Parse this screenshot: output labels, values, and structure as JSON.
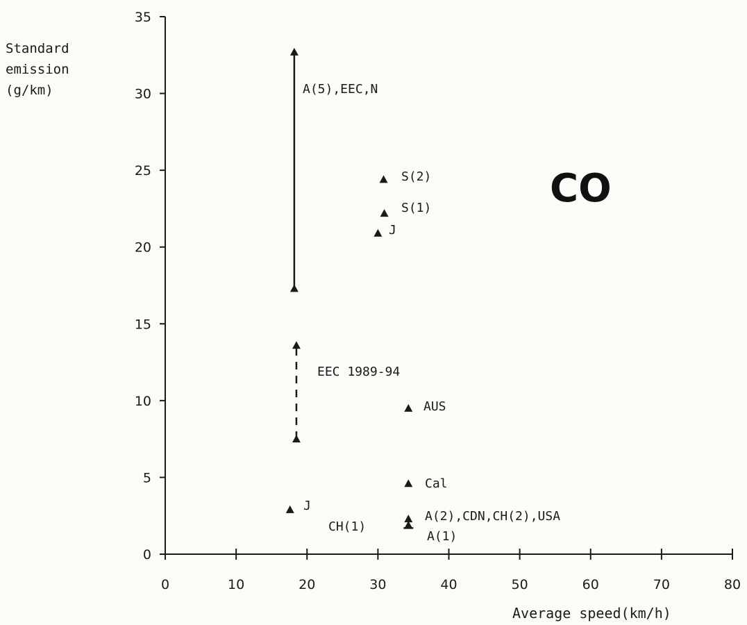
{
  "chart_data": {
    "type": "scatter",
    "title": "CO",
    "ylabel_lines": [
      "Standard",
      "emission",
      "(g/km)"
    ],
    "xlabel": "Average speed(km/h)",
    "xlim": [
      0,
      80
    ],
    "ylim": [
      0,
      35
    ],
    "xticks": [
      0,
      10,
      20,
      30,
      40,
      50,
      60,
      70,
      80
    ],
    "yticks": [
      0,
      5,
      10,
      15,
      20,
      25,
      30,
      35
    ],
    "points": [
      {
        "label": "S(2)",
        "x": 30.8,
        "y": 24.4
      },
      {
        "label": "S(1)",
        "x": 30.9,
        "y": 22.2
      },
      {
        "label": "J",
        "x": 30.0,
        "y": 20.9
      },
      {
        "label": "AUS",
        "x": 34.3,
        "y": 9.5
      },
      {
        "label": "Cal",
        "x": 34.3,
        "y": 4.6
      },
      {
        "label": "J",
        "x": 17.6,
        "y": 2.9
      },
      {
        "label": "A(2),CDN,CH(2),USA",
        "x": 34.3,
        "y": 2.3
      },
      {
        "label": "A(1)",
        "x": 34.3,
        "y": 1.9
      },
      {
        "label": "CH(1)",
        "x": 34.3,
        "y": 1.7
      }
    ],
    "ranges": [
      {
        "label": "A(5),EEC,N",
        "x": 18.2,
        "y_low": 17.3,
        "y_high": 32.7,
        "style": "solid"
      },
      {
        "label": "EEC 1989-94",
        "x": 18.5,
        "y_low": 7.5,
        "y_high": 13.6,
        "style": "dashed"
      }
    ]
  }
}
